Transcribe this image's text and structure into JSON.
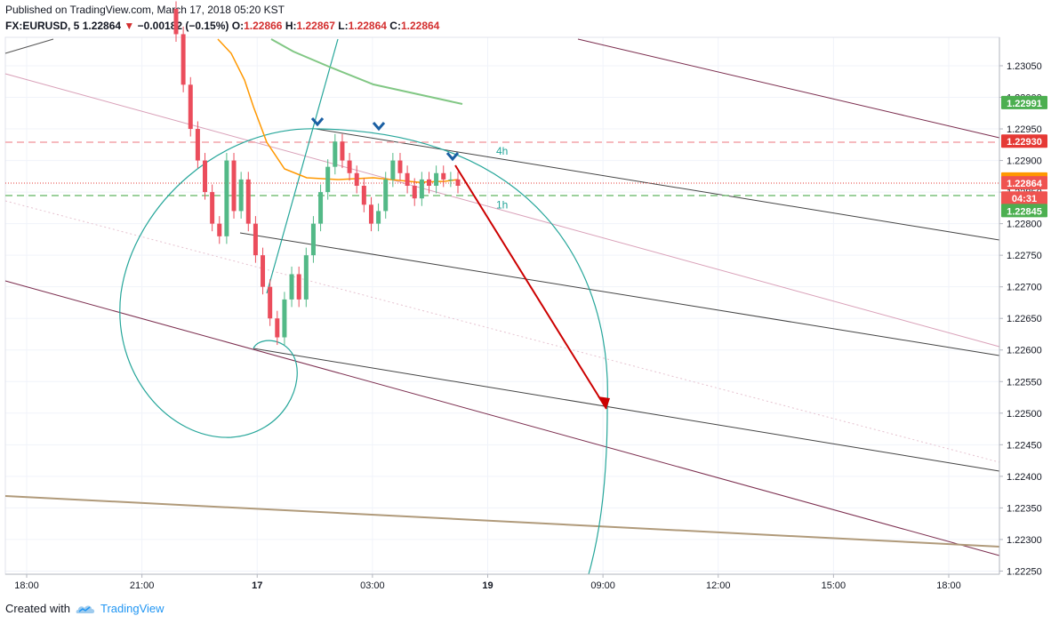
{
  "header": {
    "published": "Published on TradingView.com, March 17, 2018 05:20 KST",
    "symbol": "FX:EURUSD, 5",
    "last": "1.22864",
    "change_arrow": "▼",
    "change": "−0.00182 (−0.15%)",
    "o_label": "O:",
    "o_value": "1.22866",
    "h_label": "H:",
    "h_value": "1.22867",
    "l_label": "L:",
    "l_value": "1.22864",
    "c_label": "C:",
    "c_value": "1.22864"
  },
  "footer": {
    "created_with": "Created with",
    "brand": "TradingView",
    "logo_icon": "tradingview-cloud-icon"
  },
  "colors": {
    "up": "#53b987",
    "down": "#eb4d5c",
    "channel": "#7b2d4e",
    "arrow": "#cc0000",
    "spiral": "#26a69a",
    "ema_fast": "#ff9800",
    "ema_slow": "#81c784",
    "base": "#b09a7a"
  },
  "chart_data": {
    "type": "candlestick",
    "ylim": [
      1.22245,
      1.23095
    ],
    "y_ticks": [
      "1.23050",
      "1.23000",
      "1.22950",
      "1.22900",
      "1.22850",
      "1.22800",
      "1.22750",
      "1.22700",
      "1.22650",
      "1.22600",
      "1.22550",
      "1.22500",
      "1.22450",
      "1.22400",
      "1.22350",
      "1.22300",
      "1.22250"
    ],
    "x_ticks": [
      "18:00",
      "21:00",
      "17",
      "03:00",
      "19",
      "09:00",
      "12:00",
      "15:00",
      "18:00"
    ],
    "price_labels": [
      {
        "text": "1.22991",
        "price": 1.22991,
        "bg": "#4caf50"
      },
      {
        "text": "1.22930",
        "price": 1.2293,
        "bg": "#e53935"
      },
      {
        "text": "1.22870",
        "price": 1.2287,
        "bg": "#ff9800"
      },
      {
        "text": "1.22864",
        "price": 1.22864,
        "bg": "#ef5350"
      },
      {
        "text": "04:31",
        "price": 1.2284,
        "bg": "#ef5350"
      },
      {
        "text": "1.22845",
        "price": 1.2282,
        "bg": "#4caf50"
      }
    ],
    "annotations": [
      {
        "text": "4h",
        "price": 1.22915
      },
      {
        "text": "1h",
        "price": 1.2283
      }
    ],
    "candles_close": [
      1.231,
      1.2302,
      1.2295,
      1.229,
      1.2285,
      1.228,
      1.2278,
      1.229,
      1.2282,
      1.2287,
      1.228,
      1.2275,
      1.227,
      1.2265,
      1.2262,
      1.2268,
      1.2272,
      1.2268,
      1.2275,
      1.228,
      1.2285,
      1.2289,
      1.2293,
      1.229,
      1.2288,
      1.2286,
      1.2283,
      1.228,
      1.2282,
      1.2287,
      1.229,
      1.2288,
      1.2286,
      1.2284,
      1.2287,
      1.2286,
      1.2288,
      1.2287,
      1.2287,
      1.2286
    ]
  }
}
